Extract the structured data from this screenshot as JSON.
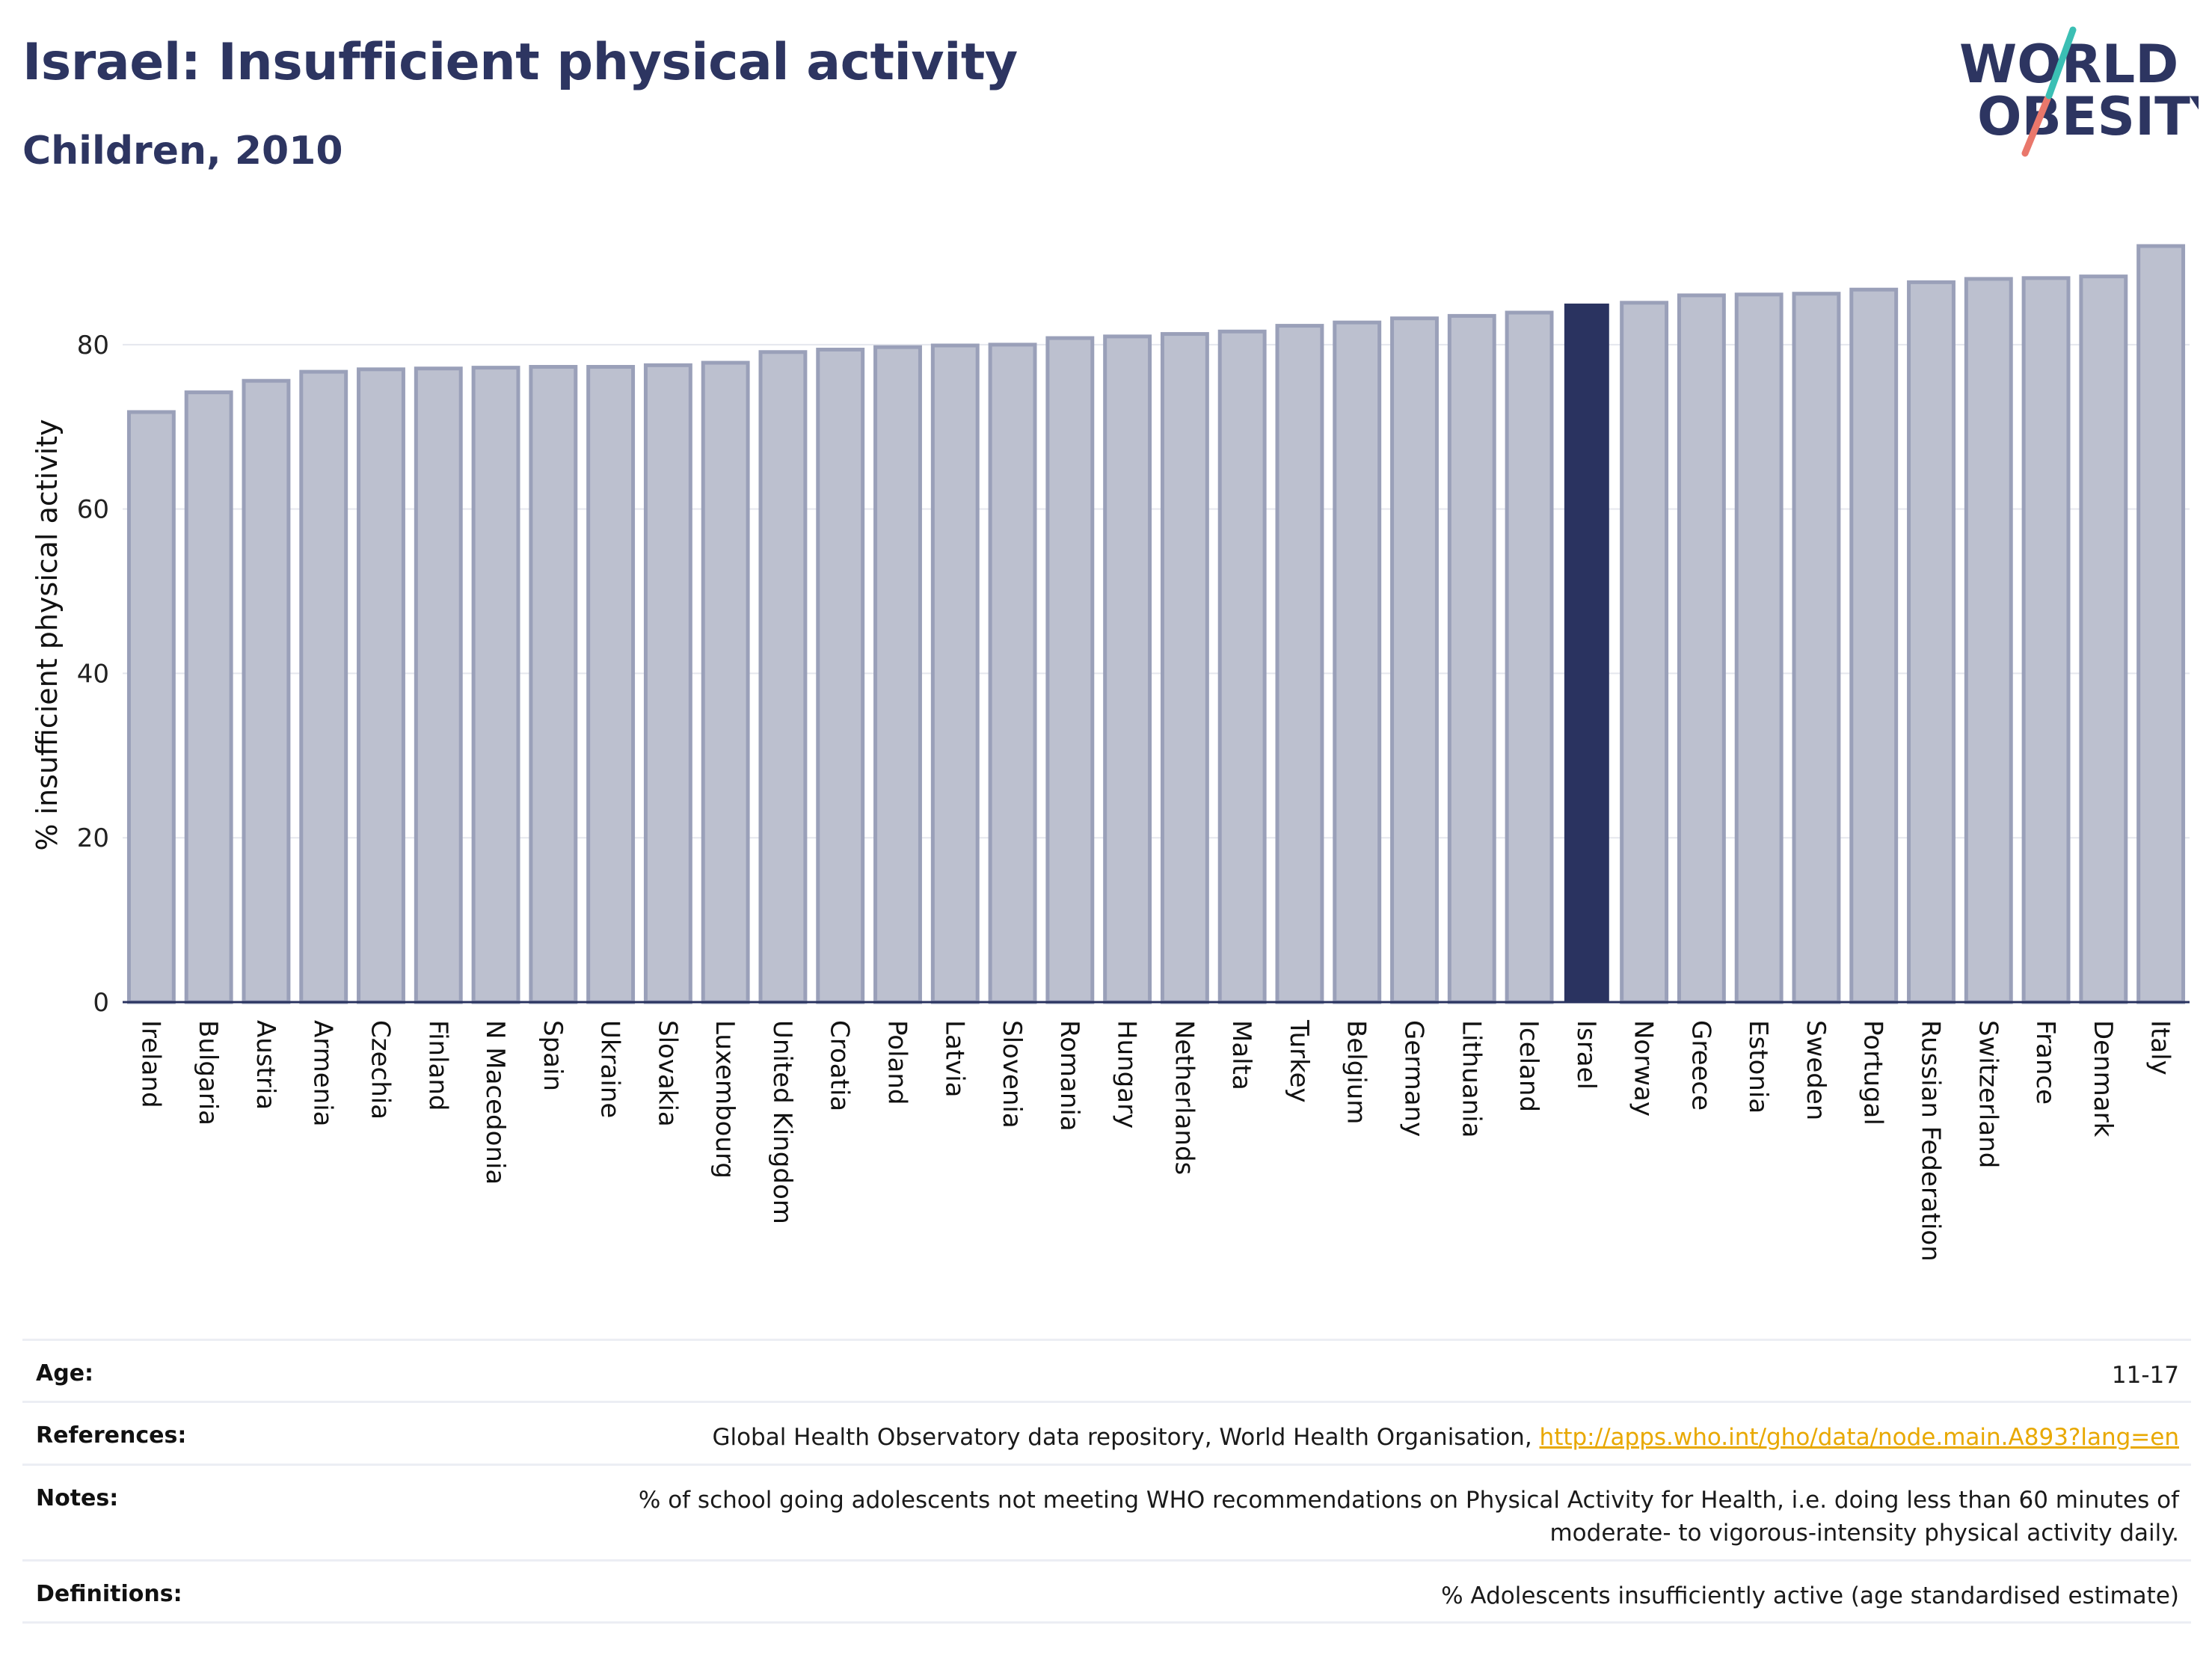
{
  "header": {
    "title": "Israel: Insufficient physical activity",
    "subtitle": "Children, 2010"
  },
  "logo": {
    "line1": "WORLD",
    "line2": "OBESITY"
  },
  "colors": {
    "bar": "#bcc0cf",
    "bar_edge": "#9aa0b9",
    "highlight": "#2a3360",
    "grid": "#e5e7ee",
    "text": "#2a3360",
    "link": "#e8a800"
  },
  "chart_data": {
    "type": "bar",
    "ylabel": "% insufficient physical activity",
    "ylim": [
      0,
      93
    ],
    "yticks": [
      0,
      20,
      40,
      60,
      80
    ],
    "highlight": "Israel",
    "categories": [
      "Ireland",
      "Bulgaria",
      "Austria",
      "Armenia",
      "Czechia",
      "Finland",
      "N Macedonia",
      "Spain",
      "Ukraine",
      "Slovakia",
      "Luxembourg",
      "United Kingdom",
      "Croatia",
      "Poland",
      "Latvia",
      "Slovenia",
      "Romania",
      "Hungary",
      "Netherlands",
      "Malta",
      "Turkey",
      "Belgium",
      "Germany",
      "Lithuania",
      "Iceland",
      "Israel",
      "Norway",
      "Greece",
      "Estonia",
      "Sweden",
      "Portugal",
      "Russian Federation",
      "Switzerland",
      "France",
      "Denmark",
      "Italy"
    ],
    "values": [
      71.8,
      74.2,
      75.6,
      76.7,
      77.0,
      77.1,
      77.2,
      77.3,
      77.3,
      77.5,
      77.8,
      79.1,
      79.4,
      79.7,
      79.9,
      80.0,
      80.8,
      81.0,
      81.3,
      81.6,
      82.3,
      82.7,
      83.2,
      83.5,
      83.9,
      85.0,
      85.1,
      86.0,
      86.1,
      86.2,
      86.7,
      87.6,
      88.0,
      88.1,
      88.3,
      92.0
    ],
    "grid": true
  },
  "info_table": [
    {
      "label": "Age:",
      "value": "11-17"
    },
    {
      "label": "References:",
      "value": "Global Health Observatory data repository, World Health Organisation, ",
      "link": "http://apps.who.int/gho/data/node.main.A893?lang=en"
    },
    {
      "label": "Notes:",
      "value": "% of school going adolescents not meeting WHO recommendations on Physical Activity for Health, i.e. doing less than 60 minutes of",
      "value2": "moderate- to vigorous-intensity physical activity daily."
    },
    {
      "label": "Definitions:",
      "value": "% Adolescents insufficiently active (age standardised estimate)"
    }
  ]
}
